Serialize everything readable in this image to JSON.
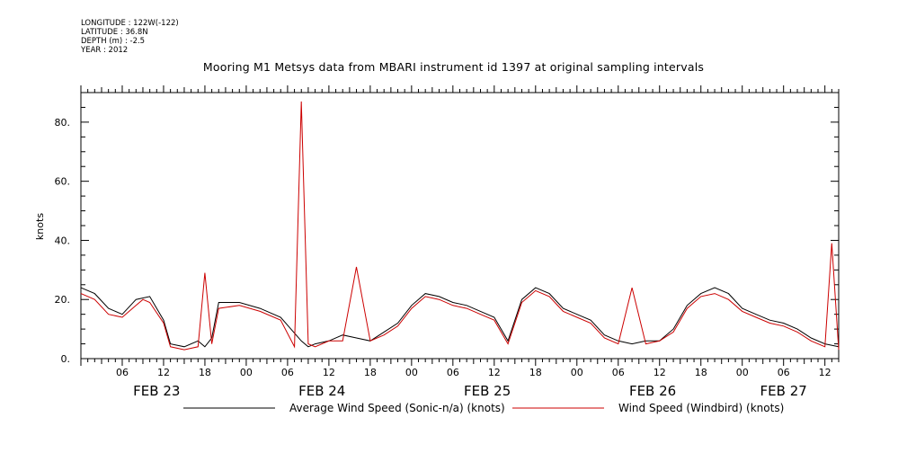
{
  "meta": {
    "longitude": "LONGITUDE : 122W(-122)",
    "latitude": "LATITUDE : 36.8N",
    "depth": "DEPTH (m) : -2.5",
    "year": "YEAR : 2012"
  },
  "chart_data": {
    "type": "line",
    "title": "Mooring M1 Metsys data from MBARI instrument id 1397 at original sampling intervals",
    "ylabel": "knots",
    "xlabel": "",
    "ylim": [
      0,
      90
    ],
    "xlim_hours": [
      0,
      110
    ],
    "grid": false,
    "legend_position": "bottom",
    "y_ticks": [
      "0.",
      "20.",
      "40.",
      "60.",
      "80."
    ],
    "hour_ticks": [
      "06",
      "12",
      "18",
      "00",
      "06",
      "12",
      "18",
      "00",
      "06",
      "12",
      "18",
      "00",
      "06",
      "12",
      "18",
      "00",
      "06",
      "12"
    ],
    "day_labels": [
      "FEB 23",
      "FEB 24",
      "FEB 25",
      "FEB 26",
      "FEB 27"
    ],
    "series": [
      {
        "name": "Average Wind Speed (Sonic-n/a) (knots)",
        "color": "#000000",
        "x": [
          0,
          2,
          4,
          6,
          8,
          10,
          12,
          13,
          15,
          17,
          18,
          19,
          20,
          23,
          26,
          29,
          32,
          33,
          34,
          36,
          38,
          40,
          42,
          44,
          46,
          48,
          50,
          52,
          54,
          56,
          58,
          60,
          62,
          64,
          66,
          68,
          70,
          72,
          74,
          76,
          78,
          80,
          82,
          84,
          86,
          88,
          90,
          92,
          94,
          96,
          98,
          100,
          102,
          104,
          106,
          108,
          110
        ],
        "values": [
          24,
          22,
          17,
          15,
          20,
          21,
          13,
          5,
          4,
          6,
          4,
          7,
          19,
          19,
          17,
          14,
          6,
          4,
          5,
          6,
          8,
          7,
          6,
          9,
          12,
          18,
          22,
          21,
          19,
          18,
          16,
          14,
          6,
          20,
          24,
          22,
          17,
          15,
          13,
          8,
          6,
          5,
          6,
          6,
          10,
          18,
          22,
          24,
          22,
          17,
          15,
          13,
          12,
          10,
          7,
          5,
          4
        ]
      },
      {
        "name": "Wind Speed (Windbird) (knots)",
        "color": "#cc0000",
        "x": [
          0,
          2,
          4,
          6,
          8,
          9,
          10,
          12,
          13,
          15,
          17,
          18,
          19,
          20,
          23,
          26,
          29,
          31,
          32,
          33,
          34,
          36,
          38,
          40,
          42,
          44,
          46,
          48,
          50,
          52,
          54,
          56,
          58,
          60,
          62,
          64,
          66,
          68,
          70,
          72,
          74,
          76,
          78,
          80,
          82,
          84,
          86,
          88,
          90,
          92,
          94,
          96,
          98,
          100,
          102,
          104,
          106,
          108,
          109,
          110
        ],
        "values": [
          22,
          20,
          15,
          14,
          18,
          20,
          19,
          12,
          4,
          3,
          4,
          29,
          5,
          17,
          18,
          16,
          13,
          4,
          87,
          5,
          4,
          6,
          6,
          31,
          6,
          8,
          11,
          17,
          21,
          20,
          18,
          17,
          15,
          13,
          5,
          19,
          23,
          21,
          16,
          14,
          12,
          7,
          5,
          24,
          5,
          6,
          9,
          17,
          21,
          22,
          20,
          16,
          14,
          12,
          11,
          9,
          6,
          4,
          39,
          3
        ]
      }
    ]
  }
}
